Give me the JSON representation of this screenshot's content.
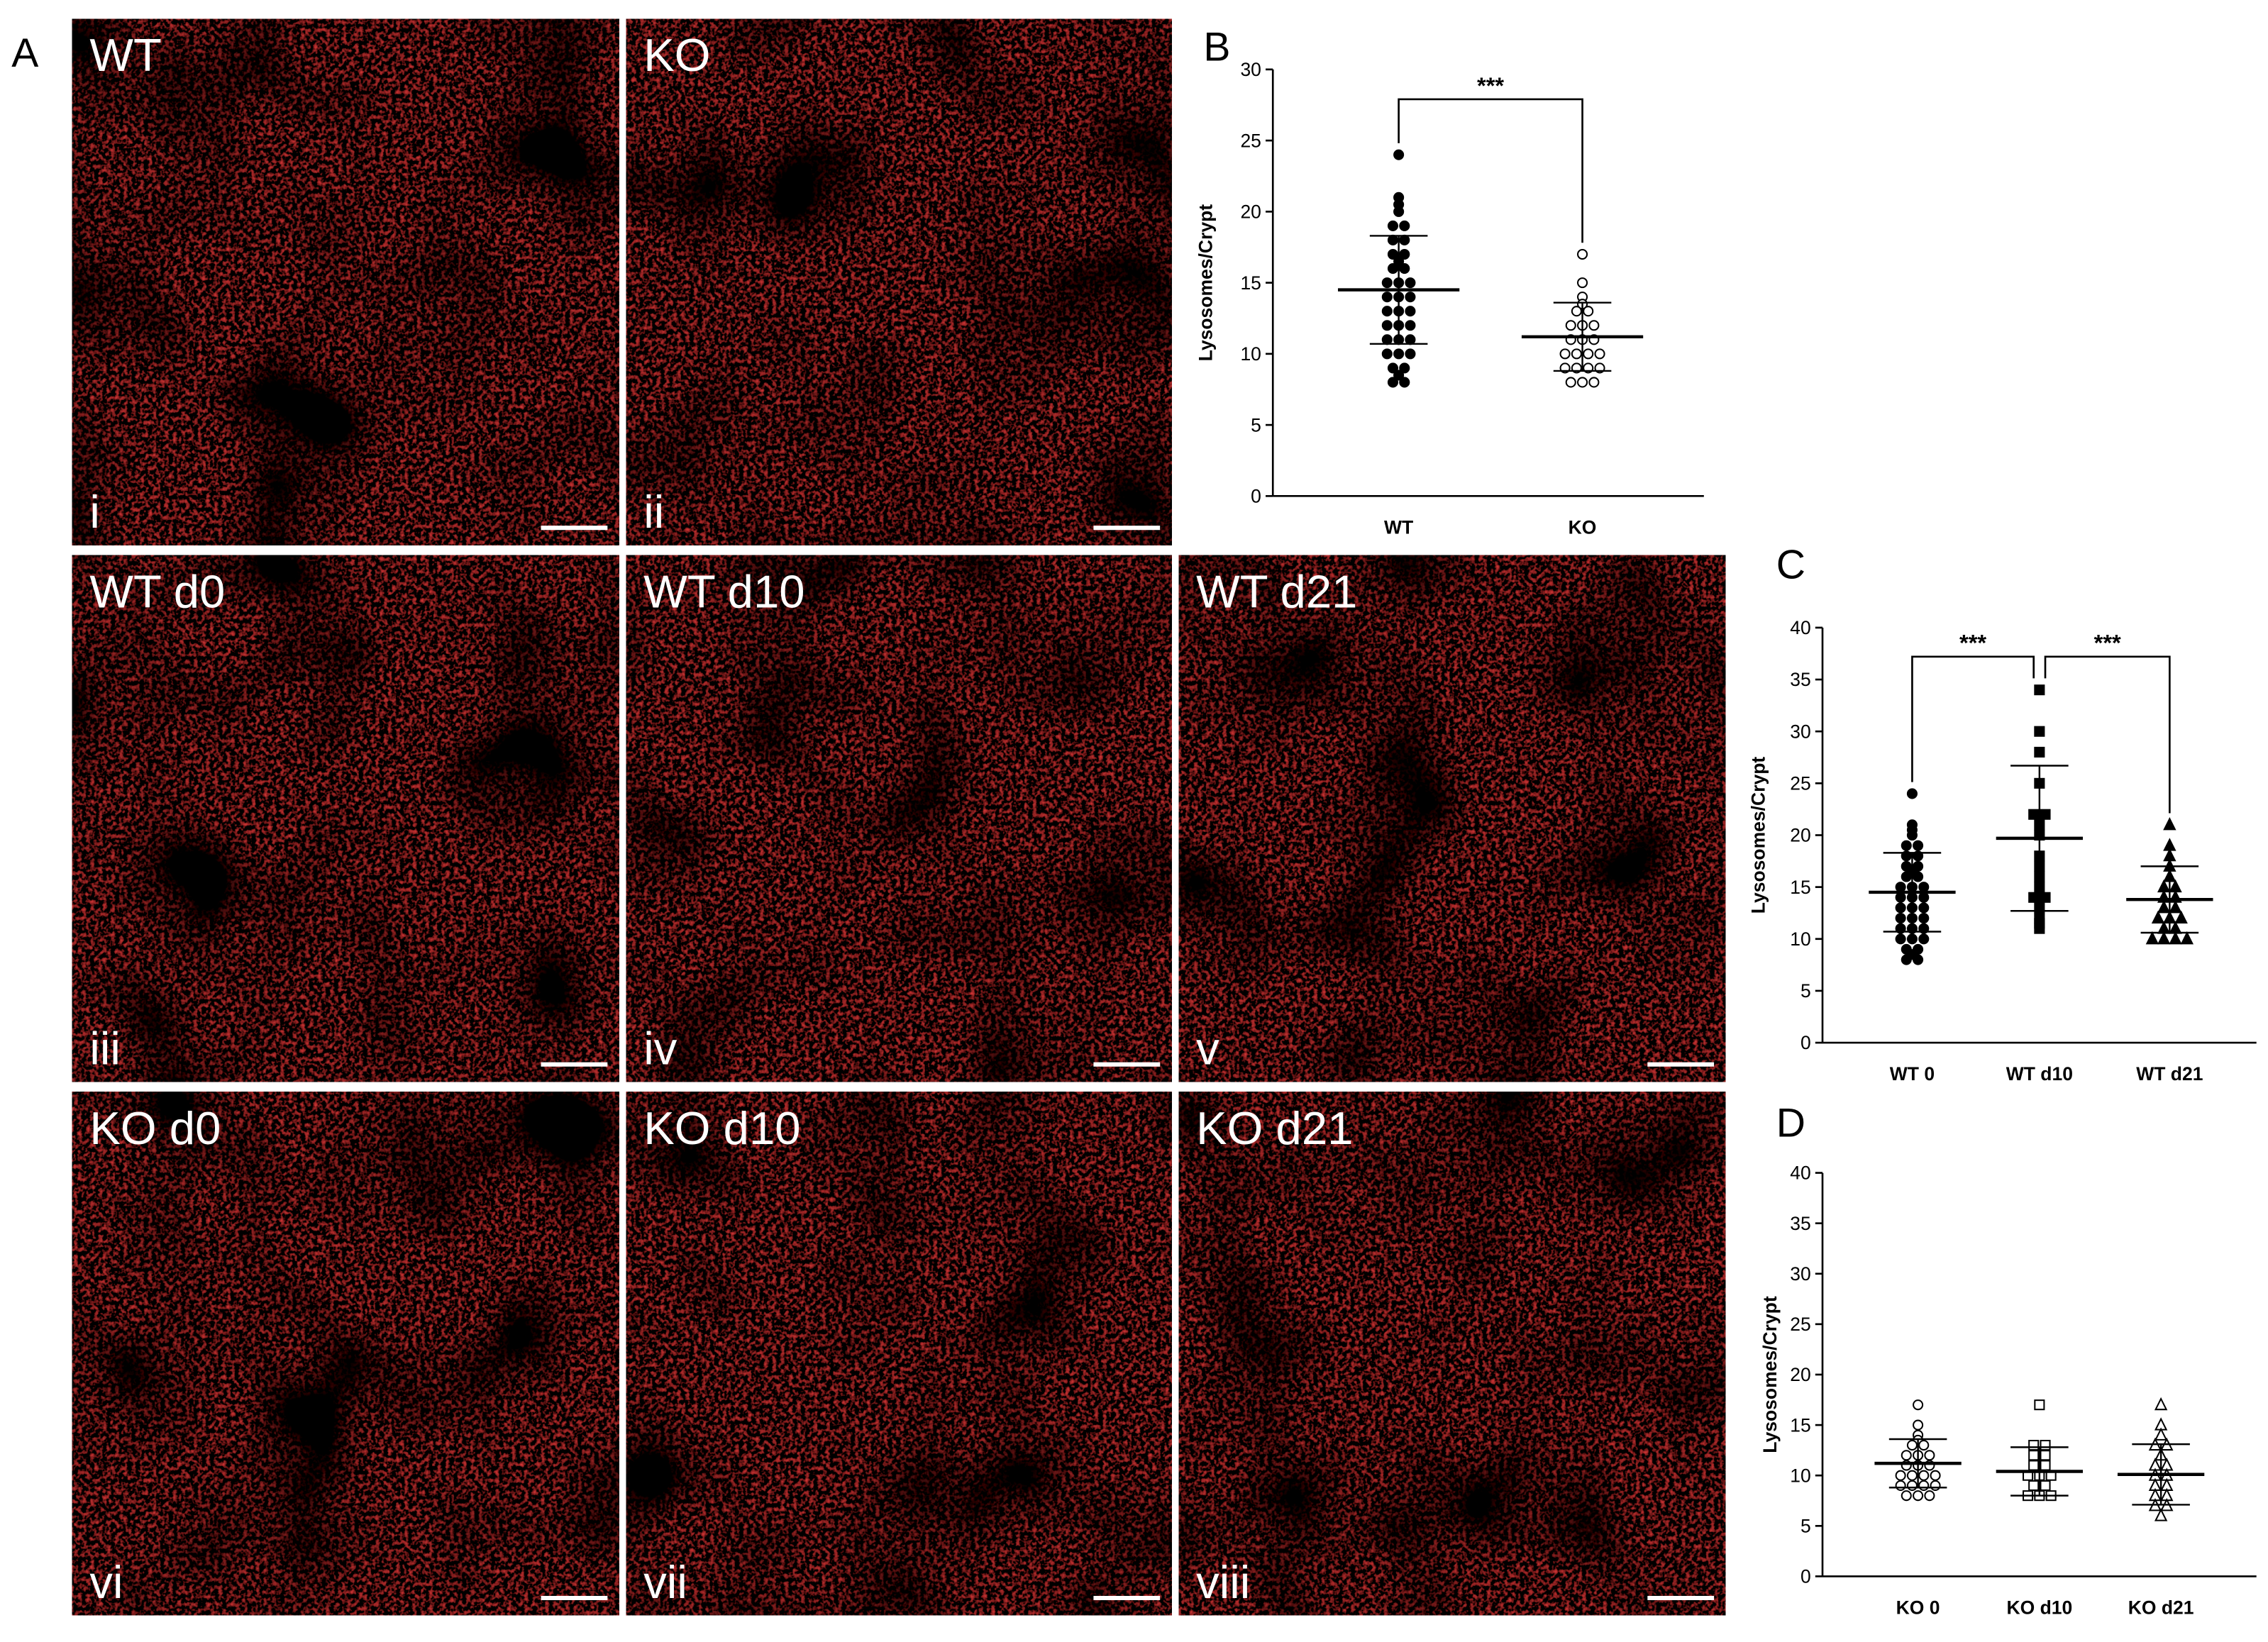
{
  "figure_labels": {
    "a": "A",
    "b": "B",
    "c": "C",
    "d": "D"
  },
  "images": [
    {
      "label": "WT",
      "numeral": "i"
    },
    {
      "label": "KO",
      "numeral": "ii"
    },
    {
      "label": "WT d0",
      "numeral": "iii"
    },
    {
      "label": "WT d10",
      "numeral": "iv"
    },
    {
      "label": "WT d21",
      "numeral": "v"
    },
    {
      "label": "KO d0",
      "numeral": "vi"
    },
    {
      "label": "KO d10",
      "numeral": "vii"
    },
    {
      "label": "KO d21",
      "numeral": "viii"
    }
  ],
  "chart_data": [
    {
      "type": "dot",
      "y_label": "Lysosomes/Crypt",
      "ylim": [
        0,
        30
      ],
      "yticks": [
        0,
        5,
        10,
        15,
        20,
        25,
        30
      ],
      "groups": [
        {
          "name": "WT",
          "marker": "circle",
          "filled": true,
          "mean": 14.5,
          "sd": 3.8,
          "values": [
            24,
            21,
            20.5,
            20,
            19,
            19,
            18,
            18,
            17,
            17,
            16.5,
            16,
            16,
            15,
            15,
            15,
            14,
            14,
            14,
            13,
            13,
            13,
            12,
            12,
            12,
            11,
            11,
            11,
            10,
            10,
            10,
            9,
            9,
            8.5,
            8,
            8
          ]
        },
        {
          "name": "KO",
          "marker": "circle",
          "filled": false,
          "mean": 11.2,
          "sd": 2.4,
          "values": [
            17,
            15,
            14,
            13.5,
            13,
            13,
            12,
            12,
            12,
            11,
            11,
            11,
            10,
            10,
            10,
            10,
            9,
            9,
            9,
            9,
            8,
            8,
            8
          ]
        }
      ],
      "brackets": [
        {
          "label": "***"
        }
      ]
    },
    {
      "type": "dot",
      "y_label": "Lysosomes/Crypt",
      "ylim": [
        0,
        40
      ],
      "yticks": [
        0,
        5,
        10,
        15,
        20,
        25,
        30,
        35,
        40
      ],
      "groups": [
        {
          "name": "WT 0",
          "marker": "circle",
          "filled": true,
          "mean": 14.5,
          "sd": 3.8,
          "values": [
            24,
            21,
            20.5,
            20,
            19,
            19,
            18,
            18,
            17,
            17,
            16.5,
            16,
            16,
            15,
            15,
            15,
            14,
            14,
            14,
            13,
            13,
            13,
            12,
            12,
            12,
            11,
            11,
            11,
            10,
            10,
            10,
            9,
            9,
            8.5,
            8,
            8
          ]
        },
        {
          "name": "WT d10",
          "marker": "square",
          "filled": true,
          "mean": 19.7,
          "sd": 7,
          "values": [
            34,
            30,
            28,
            25,
            22,
            22,
            21,
            20,
            18,
            17,
            16,
            15,
            14,
            14,
            13,
            12,
            11.5,
            11
          ]
        },
        {
          "name": "WT d21",
          "marker": "triangle",
          "filled": true,
          "mean": 13.8,
          "sd": 3.2,
          "values": [
            21,
            19,
            18,
            17,
            16,
            15,
            15,
            14,
            14,
            13,
            13,
            12,
            12,
            12,
            11,
            11,
            10,
            10,
            10,
            10
          ]
        }
      ],
      "brackets": [
        {
          "label": "***"
        },
        {
          "label": "***"
        }
      ]
    },
    {
      "type": "dot",
      "y_label": "Lysosomes/Crypt",
      "ylim": [
        0,
        40
      ],
      "yticks": [
        0,
        5,
        10,
        15,
        20,
        25,
        30,
        35,
        40
      ],
      "groups": [
        {
          "name": "KO 0",
          "marker": "circle",
          "filled": false,
          "mean": 11.2,
          "sd": 2.4,
          "values": [
            17,
            15,
            14,
            13.5,
            13,
            13,
            12,
            12,
            12,
            11,
            11,
            11,
            10,
            10,
            10,
            10,
            9,
            9,
            9,
            9,
            8,
            8,
            8
          ]
        },
        {
          "name": "KO d10",
          "marker": "square",
          "filled": false,
          "mean": 10.4,
          "sd": 2.4,
          "values": [
            17,
            13,
            13,
            12,
            12,
            11,
            11,
            10,
            10,
            10,
            9,
            9,
            8,
            8,
            8
          ]
        },
        {
          "name": "KO d21",
          "marker": "triangle",
          "filled": false,
          "mean": 10.1,
          "sd": 3,
          "values": [
            17,
            15,
            14,
            13,
            13,
            12,
            11,
            11,
            10,
            10,
            9,
            9,
            8,
            8,
            7,
            7,
            6
          ]
        }
      ],
      "brackets": []
    }
  ]
}
